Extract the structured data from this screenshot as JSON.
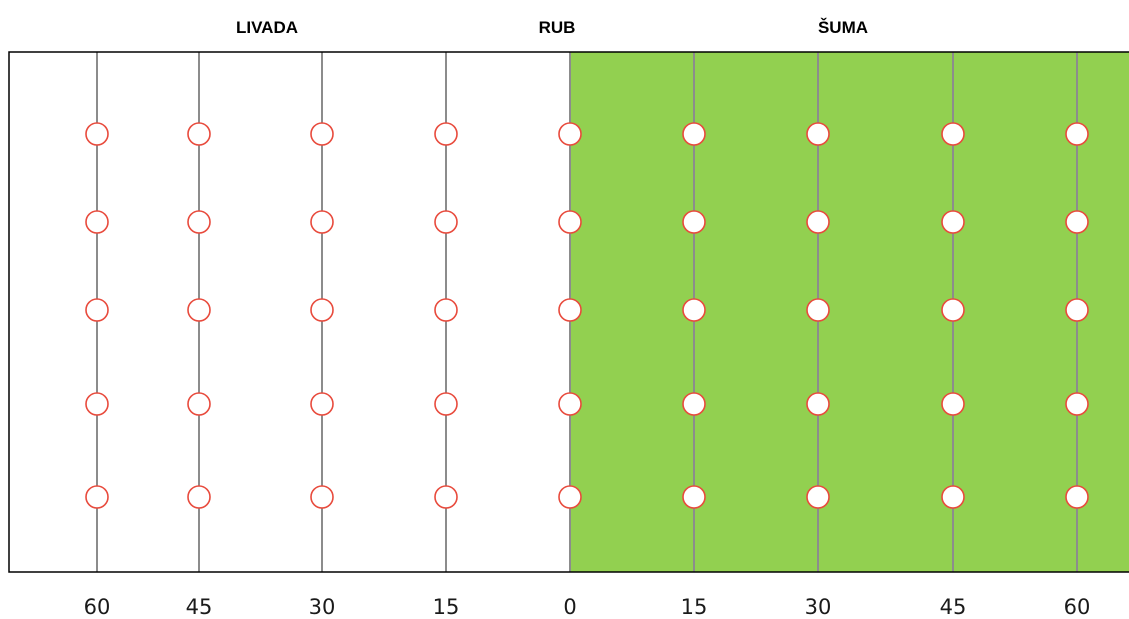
{
  "zones": {
    "meadow": "LIVADA",
    "edge": "RUB",
    "forest": "ŠUMA"
  },
  "distances": [
    "60",
    "45",
    "30",
    "15",
    "0",
    "15",
    "30",
    "45",
    "60"
  ],
  "rows_per_transect": 5,
  "colors": {
    "meadow": "#ffffff",
    "forest": "#92d050",
    "marker_stroke": "#e84a3c",
    "transect_line": "#8c8c8c",
    "frame": "#000000"
  }
}
